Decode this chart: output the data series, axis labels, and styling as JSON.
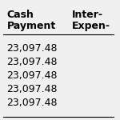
{
  "col1_header": [
    "Cash",
    "Payment"
  ],
  "col2_header": [
    "Inter-",
    "Expen-"
  ],
  "rows": [
    [
      "23,097.48",
      ""
    ],
    [
      "23,097.48",
      ""
    ],
    [
      "23,097.48",
      ""
    ],
    [
      "23,097.48",
      ""
    ],
    [
      "23,097.48",
      ""
    ]
  ],
  "bg_color": "#f0f0f0",
  "font_size": 9,
  "header_font_size": 9
}
